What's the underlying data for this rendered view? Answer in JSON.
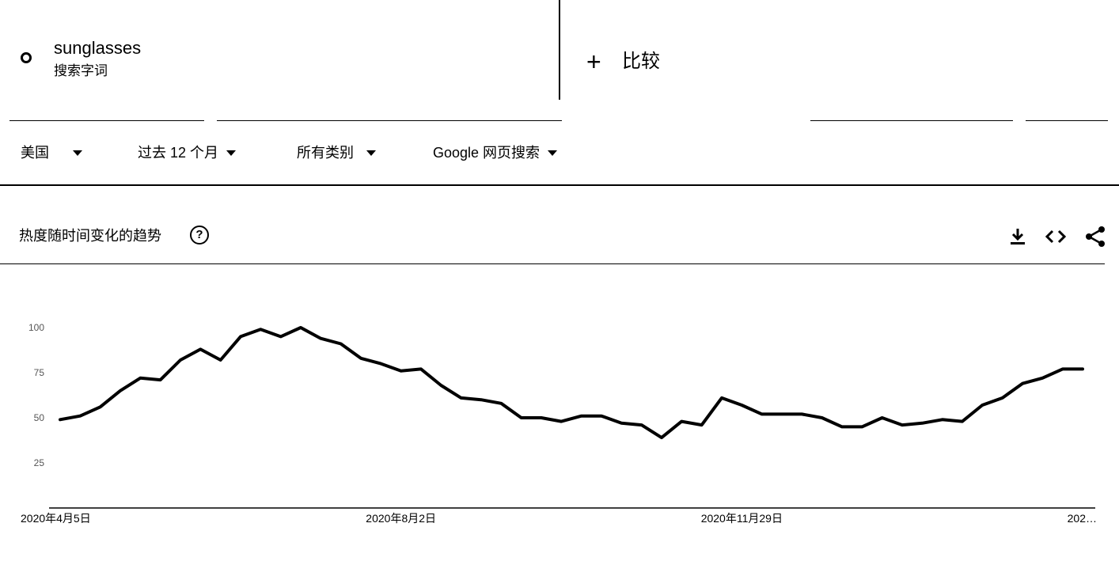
{
  "search_term": {
    "name": "sunglasses",
    "type": "搜索字词"
  },
  "compare": {
    "plus_icon": "plus-icon",
    "label": "比较"
  },
  "filters": {
    "region": "美国",
    "time_range": "过去 12 个月",
    "category": "所有类别",
    "search_type": "Google 网页搜索"
  },
  "section": {
    "title": "热度随时间变化的趋势",
    "help_icon": "help-circle-icon",
    "help_glyph": "?",
    "actions": [
      "download-icon",
      "embed-code-icon",
      "share-icon"
    ]
  },
  "chart_data": {
    "type": "line",
    "ylim": [
      0,
      100
    ],
    "y_ticks": [
      "25",
      "50",
      "75",
      "100"
    ],
    "x_tick_labels": [
      "2020年4月5日",
      "2020年8月2日",
      "2020年11月29日",
      "202…"
    ],
    "series": [
      {
        "values": [
          49,
          51,
          56,
          65,
          72,
          71,
          82,
          88,
          82,
          95,
          99,
          95,
          100,
          94,
          91,
          83,
          80,
          76,
          77,
          68,
          61,
          60,
          58,
          50,
          50,
          48,
          51,
          51,
          47,
          46,
          39,
          48,
          46,
          61,
          57,
          52,
          52,
          52,
          50,
          45,
          45,
          50,
          46,
          47,
          49,
          48,
          57,
          61,
          69,
          72,
          77,
          77
        ]
      }
    ],
    "line_color": "#000000"
  }
}
